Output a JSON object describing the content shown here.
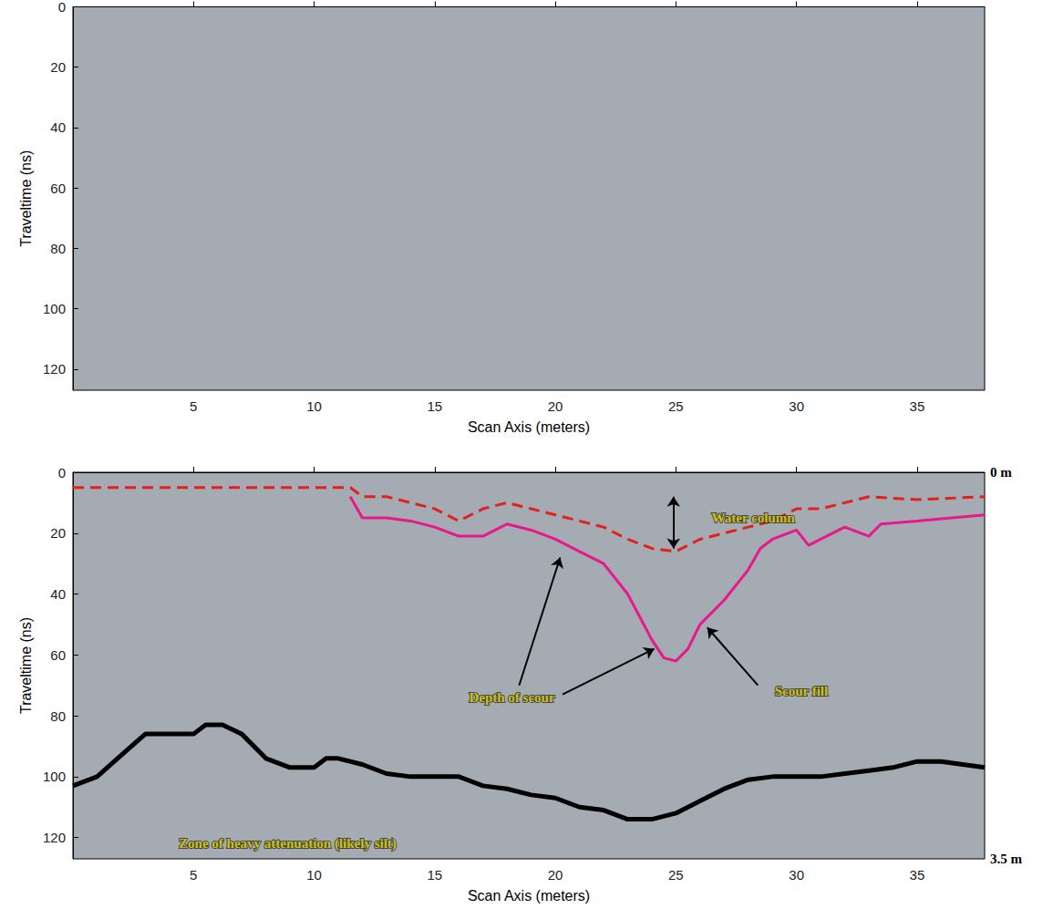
{
  "chart_data": [
    {
      "type": "radargram",
      "xlabel": "Scan Axis (meters)",
      "ylabel": "Traveltime (ns)",
      "xlim": [
        0,
        37.8
      ],
      "ylim": [
        0,
        127
      ],
      "xticks": [
        5,
        10,
        15,
        20,
        25,
        30,
        35
      ],
      "yticks": [
        0,
        20,
        40,
        60,
        80,
        100,
        120
      ],
      "grid": false
    },
    {
      "type": "line",
      "xlabel": "Scan Axis (meters)",
      "ylabel": "Traveltime (ns)",
      "xlim": [
        0,
        37.8
      ],
      "ylim": [
        0,
        127
      ],
      "xticks": [
        5,
        10,
        15,
        20,
        25,
        30,
        35
      ],
      "yticks": [
        0,
        20,
        40,
        60,
        80,
        100,
        120
      ],
      "y2lim": [
        0,
        3.5
      ],
      "y2ticks": [
        {
          "value": 0,
          "label": "0 m"
        },
        {
          "value": 3.5,
          "label": "3.5 m"
        }
      ],
      "grid": false,
      "series": [
        {
          "color": "#e3201c",
          "line_style": "dashed",
          "x": [
            0,
            11.5,
            12,
            13,
            14,
            15,
            16,
            17,
            18,
            19,
            20,
            21,
            22,
            23,
            24,
            25,
            26,
            27,
            28,
            29,
            30,
            31,
            32,
            33,
            35,
            37.8
          ],
          "values": [
            5,
            5,
            8,
            8,
            10,
            12,
            16,
            12,
            10,
            12,
            14,
            16,
            18,
            22,
            25,
            26,
            22,
            20,
            18,
            16,
            12,
            12,
            10,
            8,
            9,
            8
          ]
        },
        {
          "color": "#e8178a",
          "line_style": "solid",
          "x": [
            11.5,
            12,
            13,
            14,
            15,
            16,
            17,
            17.5,
            18,
            19,
            20,
            21,
            22,
            23,
            24,
            24.5,
            25,
            25.5,
            26,
            27,
            28,
            28.5,
            29,
            30,
            30.5,
            31,
            32,
            33,
            33.5,
            35,
            37.8
          ],
          "values": [
            8,
            15,
            15,
            16,
            18,
            21,
            21,
            19,
            17,
            19,
            22,
            26,
            30,
            40,
            55,
            61,
            62,
            58,
            50,
            42,
            32,
            25,
            22,
            19,
            24,
            22,
            18,
            21,
            17,
            16,
            14
          ]
        },
        {
          "color": "#000000",
          "line_style": "solid",
          "x": [
            0,
            1,
            2,
            3,
            5,
            5.5,
            6.2,
            7,
            8,
            9,
            10,
            10.5,
            11,
            12,
            13,
            14,
            16,
            17,
            18,
            19,
            20,
            21,
            22,
            23,
            24,
            25,
            26,
            27,
            28,
            29,
            30,
            31,
            32,
            33,
            34,
            35,
            36,
            37.8
          ],
          "values": [
            103,
            100,
            93,
            86,
            86,
            83,
            83,
            86,
            94,
            97,
            97,
            94,
            94,
            96,
            99,
            100,
            100,
            103,
            104,
            106,
            107,
            110,
            111,
            114,
            114,
            112,
            108,
            104,
            101,
            100,
            100,
            100,
            99,
            98,
            97,
            95,
            95,
            97
          ]
        }
      ],
      "annotations": [
        {
          "text": "Water column",
          "x": 28.2,
          "y": 15,
          "marker": "double_arrow",
          "arrows": [
            [
              [
                24.9,
                8
              ],
              [
                24.9,
                25
              ]
            ]
          ]
        },
        {
          "text": "Depth of scour",
          "x": 18.2,
          "y": 74,
          "marker": "arrow",
          "arrows": [
            [
              [
                18.5,
                70
              ],
              [
                20.2,
                28
              ]
            ],
            [
              [
                20.3,
                73
              ],
              [
                24.1,
                58
              ]
            ]
          ]
        },
        {
          "text": "Scour fill",
          "x": 30.2,
          "y": 72,
          "marker": "arrow",
          "arrows": [
            [
              [
                28.4,
                70
              ],
              [
                26.3,
                51
              ]
            ]
          ]
        },
        {
          "text": "Zone of heavy attenuation (likely silt)",
          "x": 8.9,
          "y": 122
        }
      ]
    }
  ]
}
